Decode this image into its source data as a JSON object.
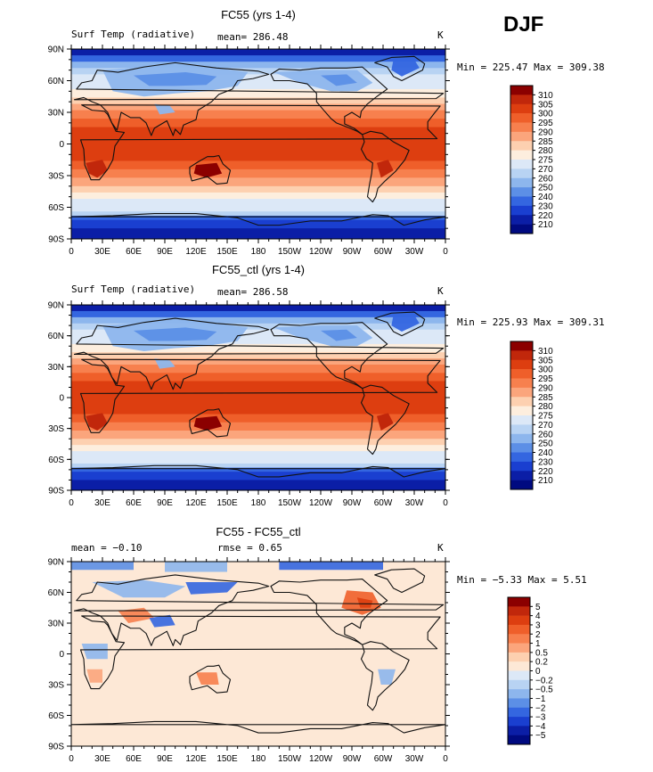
{
  "season": "DJF",
  "panels": [
    {
      "title": "FC55 (yrs 1-4)",
      "left": "Surf Temp (radiative)",
      "mid": "mean= 286.48",
      "unit": "K",
      "minmax": "Min = 225.47  Max = 309.38"
    },
    {
      "title": "FC55_ctl (yrs 1-4)",
      "left": "Surf Temp (radiative)",
      "mid": "mean= 286.58",
      "unit": "K",
      "minmax": "Min = 225.93  Max = 309.31"
    },
    {
      "title": "FC55 - FC55_ctl",
      "left": "mean =   −0.10",
      "mid": "rmse =     0.65",
      "unit": "K",
      "minmax": "Min =   −5.33  Max =    5.51"
    }
  ],
  "lat_labels": [
    "90N",
    "60N",
    "30N",
    "0",
    "30S",
    "60S",
    "90S"
  ],
  "lon_labels": [
    "0",
    "30E",
    "60E",
    "90E",
    "120E",
    "150E",
    "180",
    "150W",
    "120W",
    "90W",
    "60W",
    "30W",
    "0"
  ],
  "colorbar_temp": {
    "labels": [
      "310",
      "305",
      "300",
      "295",
      "290",
      "285",
      "280",
      "275",
      "270",
      "260",
      "250",
      "240",
      "230",
      "220",
      "210"
    ],
    "colors": [
      "#8b0000",
      "#c1270b",
      "#dd3e10",
      "#ef5f2a",
      "#f7804e",
      "#fba57c",
      "#fdd0b0",
      "#fdeede",
      "#dce8f7",
      "#b8d3f3",
      "#8db6ed",
      "#5c8fe6",
      "#3466e0",
      "#1a3fd0",
      "#0b1ea6",
      "#000a80"
    ]
  },
  "colorbar_diff": {
    "labels": [
      "5",
      "4",
      "3",
      "2",
      "1",
      "0.5",
      "0.2",
      "0",
      "−0.2",
      "−0.5",
      "−1",
      "−2",
      "−3",
      "−4",
      "−5"
    ],
    "colors": [
      "#8b0000",
      "#c1270b",
      "#dd3e10",
      "#ef5f2a",
      "#f7804e",
      "#fba57c",
      "#fdd0b0",
      "#fde8d6",
      "#dce8f7",
      "#b8d3f3",
      "#8db6ed",
      "#5c8fe6",
      "#3466e0",
      "#1a3fd0",
      "#0b1ea6",
      "#000a80"
    ]
  },
  "chart_data": [
    {
      "type": "heatmap",
      "title": "FC55 (yrs 1-4)",
      "subtitle": "Surf Temp (radiative)",
      "units": "K",
      "mean": 286.48,
      "min": 225.47,
      "max": 309.38,
      "x_ticks": [
        "0",
        "30E",
        "60E",
        "90E",
        "120E",
        "150E",
        "180",
        "150W",
        "120W",
        "90W",
        "60W",
        "30W",
        "0"
      ],
      "y_ticks": [
        "90N",
        "60N",
        "30N",
        "0",
        "30S",
        "60S",
        "90S"
      ],
      "levels": [
        210,
        220,
        230,
        240,
        250,
        260,
        270,
        275,
        280,
        285,
        290,
        295,
        300,
        305,
        310
      ]
    },
    {
      "type": "heatmap",
      "title": "FC55_ctl (yrs 1-4)",
      "subtitle": "Surf Temp (radiative)",
      "units": "K",
      "mean": 286.58,
      "min": 225.93,
      "max": 309.31,
      "x_ticks": [
        "0",
        "30E",
        "60E",
        "90E",
        "120E",
        "150E",
        "180",
        "150W",
        "120W",
        "90W",
        "60W",
        "30W",
        "0"
      ],
      "y_ticks": [
        "90N",
        "60N",
        "30N",
        "0",
        "30S",
        "60S",
        "90S"
      ],
      "levels": [
        210,
        220,
        230,
        240,
        250,
        260,
        270,
        275,
        280,
        285,
        290,
        295,
        300,
        305,
        310
      ]
    },
    {
      "type": "heatmap",
      "title": "FC55 - FC55_ctl",
      "units": "K",
      "mean": -0.1,
      "rmse": 0.65,
      "min": -5.33,
      "max": 5.51,
      "x_ticks": [
        "0",
        "30E",
        "60E",
        "90E",
        "120E",
        "150E",
        "180",
        "150W",
        "120W",
        "90W",
        "60W",
        "30W",
        "0"
      ],
      "y_ticks": [
        "90N",
        "60N",
        "30N",
        "0",
        "30S",
        "60S",
        "90S"
      ],
      "levels": [
        -5,
        -4,
        -3,
        -2,
        -1,
        -0.5,
        -0.2,
        0,
        0.2,
        0.5,
        1,
        2,
        3,
        4,
        5
      ]
    }
  ]
}
